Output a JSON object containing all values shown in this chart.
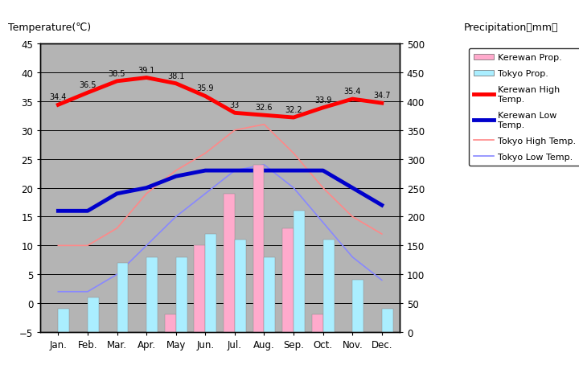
{
  "months": [
    "Jan.",
    "Feb.",
    "Mar.",
    "Apr.",
    "May",
    "Jun.",
    "Jul.",
    "Aug.",
    "Sep.",
    "Oct.",
    "Nov.",
    "Dec."
  ],
  "kerewan_high": [
    34.4,
    36.5,
    38.5,
    39.1,
    38.1,
    35.9,
    33,
    32.6,
    32.2,
    33.9,
    35.4,
    34.7
  ],
  "kerewan_low": [
    16,
    16,
    19,
    20,
    22,
    23,
    23,
    23,
    23,
    23,
    20,
    17
  ],
  "tokyo_high": [
    10,
    10,
    13,
    19,
    23,
    26,
    30,
    31,
    26,
    20,
    15,
    12
  ],
  "tokyo_low": [
    2,
    2,
    5,
    10,
    15,
    19,
    23,
    24,
    20,
    14,
    8,
    4
  ],
  "kerewan_precip_mm": [
    0,
    0,
    0,
    0,
    30,
    150,
    240,
    290,
    180,
    30,
    0,
    0
  ],
  "tokyo_precip_mm": [
    40,
    60,
    120,
    130,
    130,
    170,
    160,
    130,
    210,
    160,
    90,
    40
  ],
  "kerewan_high_label": [
    "34.4",
    "36.5",
    "38.5",
    "39.1",
    "38.1",
    "35.9",
    "33",
    "32.6",
    "32.2",
    "33.9",
    "35.4",
    "34.7"
  ],
  "bg_color": "#c8c8c8",
  "plot_bg_color": "#b4b4b4",
  "outer_bg_color": "#ffffff",
  "kerewan_high_color": "#ff0000",
  "kerewan_low_color": "#0000cc",
  "tokyo_high_color": "#ff8888",
  "tokyo_low_color": "#8888ff",
  "kerewan_precip_color": "#ffaacc",
  "tokyo_precip_color": "#aaeeff",
  "ylim_left": [
    -5,
    45
  ],
  "ylim_right": [
    0,
    500
  ],
  "title_left": "Temperature(℃)",
  "title_right": "Precipitation（mm）"
}
